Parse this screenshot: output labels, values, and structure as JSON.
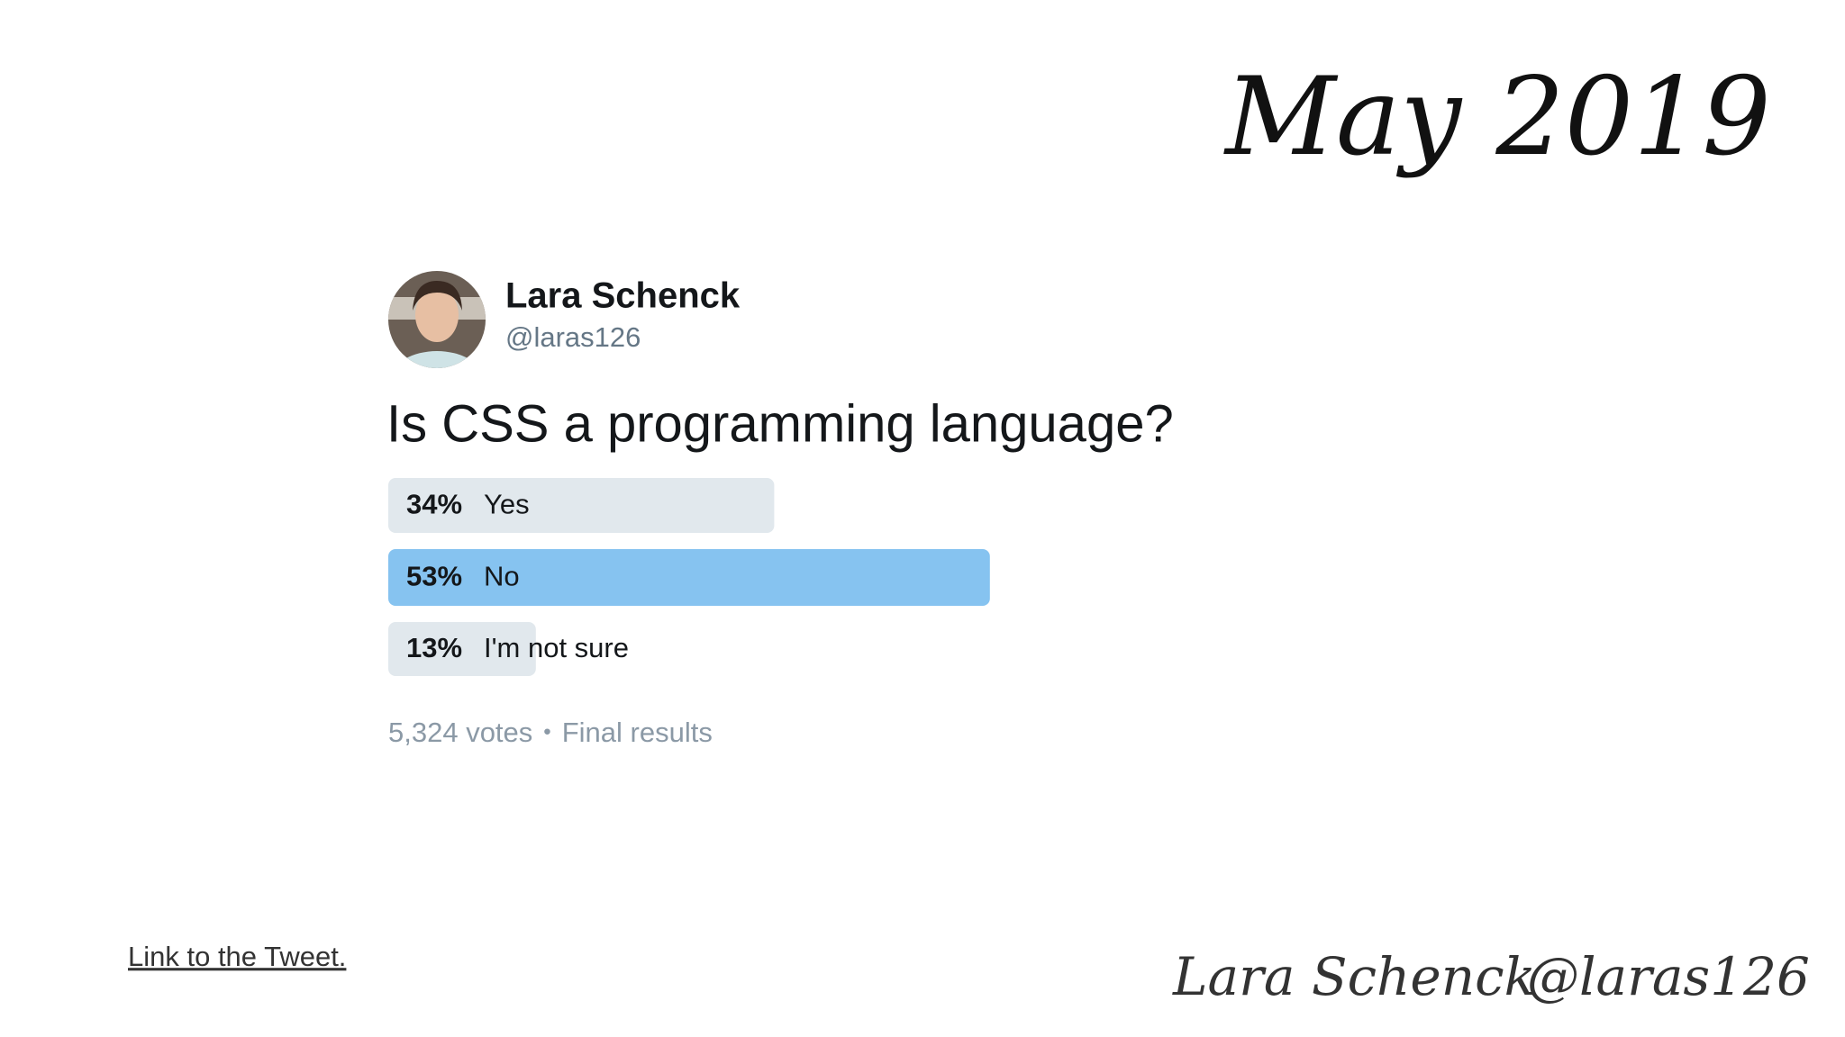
{
  "header": {
    "date": "May 2019"
  },
  "tweet": {
    "name": "Lara Schenck",
    "handle": "@laras126",
    "question": "Is CSS a programming language?",
    "options": [
      {
        "value": 34,
        "label": "34%",
        "text": "Yes",
        "color": "#e1e8ed"
      },
      {
        "value": 53,
        "label": "53%",
        "text": "No",
        "color": "#86c3f0"
      },
      {
        "value": 13,
        "label": "13%",
        "text": "I'm not sure",
        "color": "#e1e8ed"
      }
    ],
    "votes": "5,324 votes",
    "separator": "•",
    "status": "Final results"
  },
  "footer": {
    "link": "Link to the Tweet.",
    "signature_name": "Lara Schenck",
    "signature_handle": "@laras126"
  }
}
